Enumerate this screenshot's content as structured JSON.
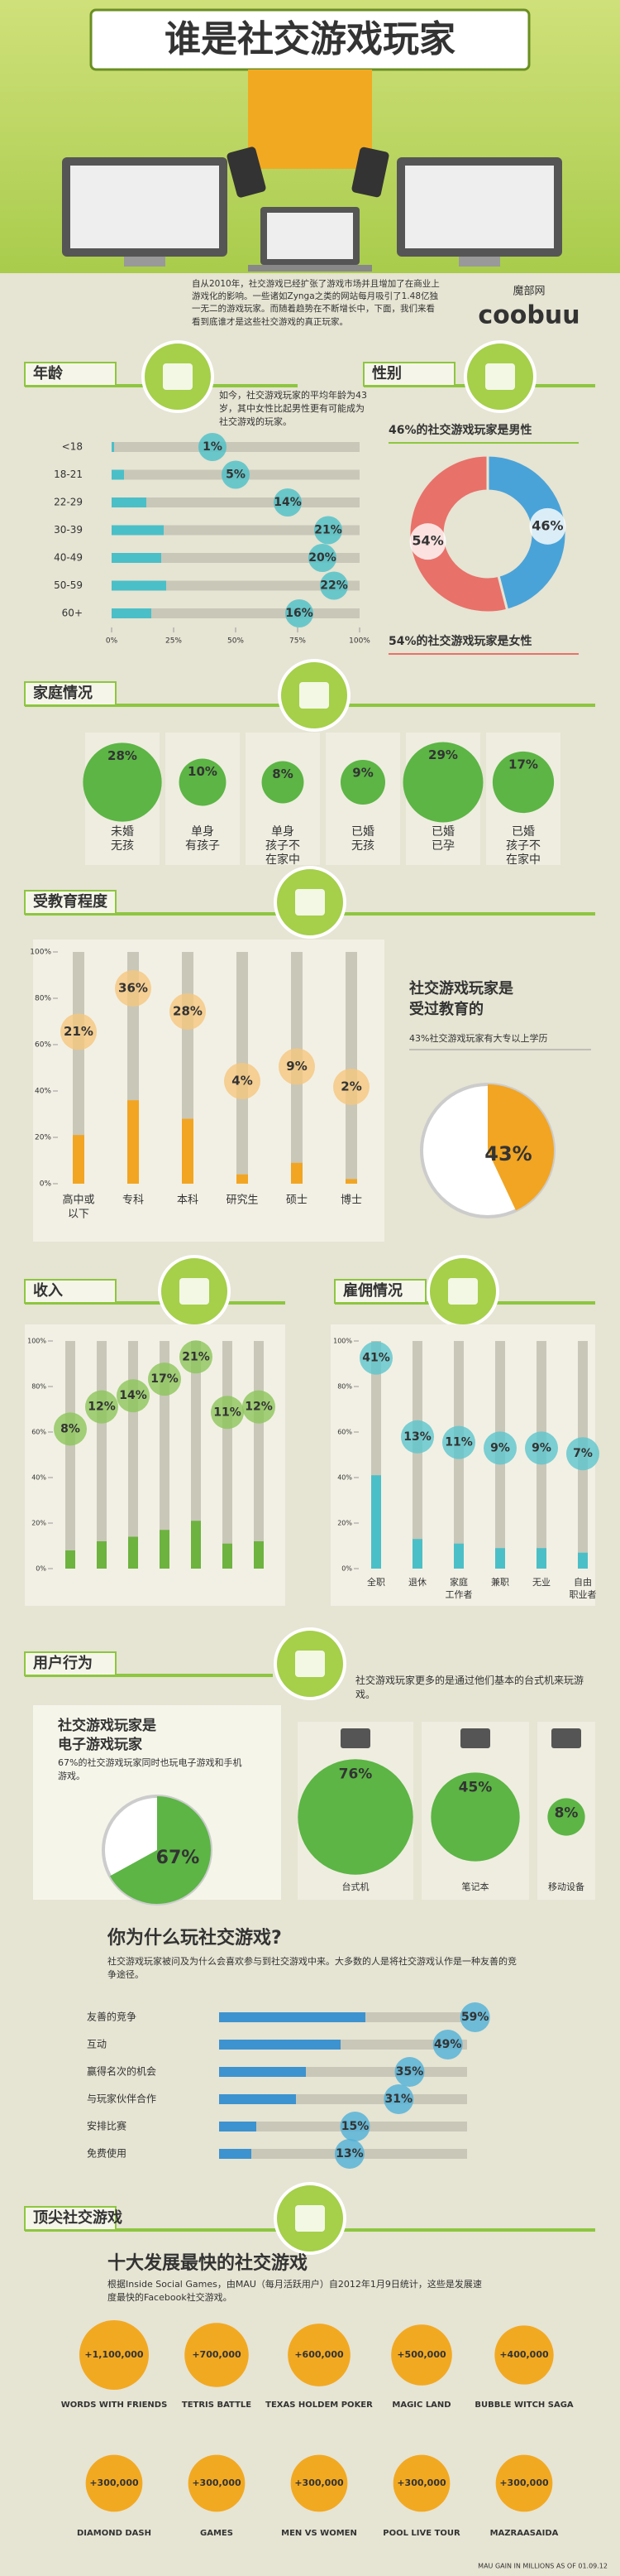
{
  "header": {
    "title": "谁是社交游戏玩家",
    "intro": "自从2010年，社交游戏已经扩张了游戏市场并且增加了在商业上游戏化的影响。一些诸如Zynga之类的网站每月吸引了1.48亿独一无二的游戏玩家。而随着趋势在不断增长中，下面，我们来看看到底谁才是这些社交游戏的真正玩家。",
    "logo_cn": "魔部网",
    "logo_en": "coobuu"
  },
  "age": {
    "heading": "年龄",
    "text": "如今，社交游戏玩家的平均年龄为43岁，其中女性比起男性更有可能成为社交游戏的玩家。",
    "categories": [
      "<18",
      "18-21",
      "22-29",
      "30-39",
      "40-49",
      "50-59",
      "60+"
    ],
    "values": [
      1,
      5,
      14,
      21,
      20,
      22,
      16
    ],
    "value_labels": [
      "1%",
      "5%",
      "14%",
      "21%",
      "20%",
      "22%",
      "16%"
    ],
    "xlim": [
      0,
      100
    ],
    "xticks": [
      {
        "value": 0,
        "label": "0%"
      },
      {
        "value": 25,
        "label": "25%"
      },
      {
        "value": 50,
        "label": "50%"
      },
      {
        "value": 75,
        "label": "75%"
      },
      {
        "value": 100,
        "label": "100%"
      }
    ],
    "color": "#4bbfc7"
  },
  "gender": {
    "heading": "性别",
    "male_text": "46%的社交游戏玩家是男性",
    "female_text": "54%的社交游戏玩家是女性",
    "values": [
      46,
      54
    ],
    "value_labels": [
      "46%",
      "54%"
    ],
    "colors": [
      "#4aa3d8",
      "#e8716a"
    ]
  },
  "family": {
    "heading": "家庭情况",
    "categories": [
      [
        "未婚",
        "无孩"
      ],
      [
        "单身",
        "有孩子"
      ],
      [
        "单身",
        "孩子不",
        "在家中"
      ],
      [
        "已婚",
        "无孩"
      ],
      [
        "已婚",
        "已孕"
      ],
      [
        "已婚",
        "孩子不",
        "在家中"
      ]
    ],
    "values": [
      28,
      10,
      8,
      9,
      29,
      17
    ],
    "value_labels": [
      "28%",
      "10%",
      "8%",
      "9%",
      "29%",
      "17%"
    ],
    "color": "#5cb545"
  },
  "education": {
    "heading": "受教育程度",
    "categories": [
      [
        "高中或",
        "以下"
      ],
      [
        "专科"
      ],
      [
        "本科"
      ],
      [
        "研究生"
      ],
      [
        "硕士"
      ],
      [
        "博士"
      ]
    ],
    "values": [
      21,
      36,
      28,
      4,
      9,
      2
    ],
    "value_labels": [
      "21%",
      "36%",
      "28%",
      "4%",
      "9%",
      "2%"
    ],
    "ylim": [
      0,
      100
    ],
    "yticks": [
      {
        "value": 0,
        "label": "0%"
      },
      {
        "value": 20,
        "label": "20%"
      },
      {
        "value": 40,
        "label": "40%"
      },
      {
        "value": 60,
        "label": "60%"
      },
      {
        "value": 80,
        "label": "80%"
      },
      {
        "value": 100,
        "label": "100%"
      }
    ],
    "color": "#f2a522",
    "summary_title": [
      "社交游戏玩家是",
      "受过教育的"
    ],
    "summary_text": "43%社交游戏玩家有大专以上学历",
    "summary_value": 43,
    "summary_label": "43%"
  },
  "income": {
    "heading": "收入",
    "values": [
      8,
      12,
      14,
      17,
      21,
      11,
      12
    ],
    "value_labels": [
      "8%",
      "12%",
      "14%",
      "17%",
      "21%",
      "11%",
      "12%"
    ],
    "ylim": [
      0,
      100
    ],
    "yticks": [
      {
        "value": 0,
        "label": "0%"
      },
      {
        "value": 20,
        "label": "20%"
      },
      {
        "value": 40,
        "label": "40%"
      },
      {
        "value": 60,
        "label": "60%"
      },
      {
        "value": 80,
        "label": "80%"
      },
      {
        "value": 100,
        "label": "100%"
      }
    ],
    "color": "#6db33f"
  },
  "employment": {
    "heading": "雇佣情况",
    "categories": [
      [
        "全职"
      ],
      [
        "退休"
      ],
      [
        "家庭",
        "工作者"
      ],
      [
        "兼职"
      ],
      [
        "无业"
      ],
      [
        "自由",
        "职业者"
      ]
    ],
    "values": [
      41,
      13,
      11,
      9,
      9,
      7
    ],
    "value_labels": [
      "41%",
      "13%",
      "11%",
      "9%",
      "9%",
      "7%"
    ],
    "ylim": [
      0,
      100
    ],
    "yticks": [
      {
        "value": 0,
        "label": "0%"
      },
      {
        "value": 20,
        "label": "20%"
      },
      {
        "value": 40,
        "label": "40%"
      },
      {
        "value": 60,
        "label": "60%"
      },
      {
        "value": 80,
        "label": "80%"
      },
      {
        "value": 100,
        "label": "100%"
      }
    ],
    "color": "#4bbfc7"
  },
  "behavior": {
    "heading": "用户行为",
    "text": "社交游戏玩家更多的是通过他们基本的台式机来玩游戏。",
    "summary_title": [
      "社交游戏玩家是",
      "电子游戏玩家"
    ],
    "summary_text": "67%的社交游戏玩家同时也玩电子游戏和手机游戏。",
    "summary_value": 67,
    "summary_label": "67%",
    "categories": [
      "台式机",
      "笔记本",
      "移动设备"
    ],
    "values": [
      76,
      45,
      8
    ],
    "value_labels": [
      "76%",
      "45%",
      "8%"
    ],
    "color": "#5cb545"
  },
  "reasons": {
    "title": "你为什么玩社交游戏?",
    "text": "社交游戏玩家被问及为什么会喜欢参与到社交游戏中来。大多数的人是将社交游戏认作是一种友善的竞争途径。",
    "categories": [
      "友善的竞争",
      "互动",
      "赢得名次的机会",
      "与玩家伙伴合作",
      "安排比赛",
      "免费使用"
    ],
    "values": [
      59,
      49,
      35,
      31,
      15,
      13
    ],
    "value_labels": [
      "59%",
      "49%",
      "35%",
      "31%",
      "15%",
      "13%"
    ],
    "xlim": [
      0,
      100
    ],
    "color": "#3d93cf"
  },
  "top_games": {
    "heading": "顶尖社交游戏",
    "title": "十大发展最快的社交游戏",
    "text": "根据Inside Social Games，由MAU（每月活跃用户）自2012年1月9日统计，这些是发展速度最快的Facebook社交游戏。",
    "categories": [
      "WORDS WITH FRIENDS",
      "TETRIS BATTLE",
      "TEXAS HOLDEM POKER",
      "MAGIC LAND",
      "BUBBLE WITCH SAGA",
      "DIAMOND DASH",
      "GAMES",
      "MEN VS WOMEN",
      "POOL LIVE TOUR",
      "MAZRAASAIDA"
    ],
    "values": [
      1100000,
      700000,
      600000,
      500000,
      400000,
      300000,
      300000,
      300000,
      300000,
      300000
    ],
    "value_labels": [
      "+1,100,000",
      "+700,000",
      "+600,000",
      "+500,000",
      "+400,000",
      "+300,000",
      "+300,000",
      "+300,000",
      "+300,000",
      "+300,000"
    ],
    "color": "#f2a922",
    "note": "MAU GAIN IN MILLIONS AS OF 01.09.12"
  }
}
